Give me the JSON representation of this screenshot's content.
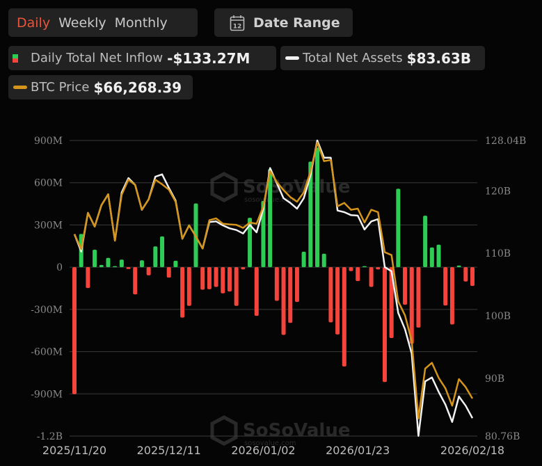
{
  "period_tabs": [
    {
      "label": "Daily",
      "active": true
    },
    {
      "label": "Weekly",
      "active": false
    },
    {
      "label": "Monthly",
      "active": false
    }
  ],
  "date_range": {
    "label": "Date Range",
    "icon": "calendar-icon",
    "icon_text": "12"
  },
  "legend": {
    "inflow": {
      "label": "Daily Total Net Inflow",
      "value": "-$133.27M"
    },
    "assets": {
      "label": "Total Net Assets",
      "value": "$83.63B"
    },
    "btc": {
      "label": "BTC Price",
      "value": "$66,268.39"
    }
  },
  "watermark": {
    "text": "SoSoValue",
    "sub": "sosovalue.com"
  },
  "colors": {
    "positive": "#2ecc55",
    "negative": "#f5443b",
    "assets_line": "#f2f2f2",
    "btc_line": "#d4951a",
    "active_tab": "#e8553a",
    "grid": "#3a3a3a"
  },
  "chart_data": {
    "type": "bar+line",
    "left_axis": {
      "ticks": [
        "900M",
        "600M",
        "300M",
        "0",
        "-300M",
        "-600M",
        "-900M",
        "-1.2B"
      ],
      "range_millions": [
        -1200,
        900
      ]
    },
    "right_axis": {
      "ticks": [
        "128.04B",
        "120B",
        "110B",
        "100B",
        "90B",
        "80.76B"
      ],
      "range_billions": [
        80.76,
        128.04
      ]
    },
    "xticks": [
      {
        "label": "2025/11/20",
        "index": 0
      },
      {
        "label": "2025/12/11",
        "index": 14
      },
      {
        "label": "2026/01/02",
        "index": 28
      },
      {
        "label": "2026/01/23",
        "index": 42
      },
      {
        "label": "2026/02/18",
        "index": 59
      }
    ],
    "grid": true,
    "series": [
      {
        "name": "Daily Total Net Inflow",
        "type": "bar",
        "unit": "M USD",
        "values": [
          -902,
          236,
          -148,
          124,
          16,
          66,
          7,
          54,
          -13,
          -193,
          49,
          -58,
          148,
          219,
          -74,
          46,
          -358,
          -275,
          453,
          -160,
          -157,
          -140,
          -186,
          -173,
          -275,
          -16,
          351,
          -346,
          470,
          697,
          -239,
          -481,
          -396,
          -247,
          110,
          750,
          849,
          96,
          -392,
          -478,
          -705,
          -28,
          -99,
          5,
          -140,
          -16,
          -816,
          -503,
          557,
          -267,
          -544,
          -429,
          366,
          140,
          160,
          -272,
          -407,
          12,
          -102,
          -133.27
        ]
      },
      {
        "name": "Total Net Assets",
        "type": "line",
        "unit": "B USD",
        "values": [
          113.06,
          110.28,
          116.47,
          114.28,
          117.69,
          119.44,
          112.02,
          119.73,
          122.03,
          120.92,
          116.95,
          118.62,
          122.25,
          122.62,
          120.47,
          118.44,
          112.32,
          114.47,
          112.69,
          110.76,
          114.99,
          115.1,
          114.47,
          113.99,
          113.72,
          113.17,
          114.54,
          113.35,
          117.14,
          123.63,
          121.22,
          118.81,
          118.06,
          117.14,
          118.81,
          122.51,
          128.04,
          125.29,
          125.29,
          116.84,
          116.58,
          116.1,
          116.02,
          113.8,
          115.1,
          115.47,
          107.79,
          107.12,
          100.45,
          97.86,
          93.96,
          80.79,
          89.51,
          90.14,
          87.84,
          85.8,
          83.02,
          87.1,
          85.62,
          83.63
        ]
      },
      {
        "name": "BTC Price",
        "type": "line",
        "unit": "USD",
        "values": [
          86000,
          84200,
          88570,
          86920,
          89490,
          90790,
          85230,
          90740,
          92550,
          91910,
          88930,
          90180,
          92550,
          91990,
          91350,
          89900,
          85450,
          87060,
          85730,
          84280,
          87680,
          87900,
          87260,
          87180,
          87120,
          86760,
          87400,
          87260,
          89350,
          93580,
          92270,
          91290,
          90460,
          89900,
          91020,
          93520,
          97000,
          94770,
          94910,
          89350,
          89760,
          88930,
          89070,
          87400,
          88930,
          88650,
          83840,
          83500,
          77930,
          76260,
          73200,
          63880,
          69860,
          70560,
          68750,
          67500,
          65410,
          68610,
          67640,
          66268.39
        ]
      }
    ]
  }
}
